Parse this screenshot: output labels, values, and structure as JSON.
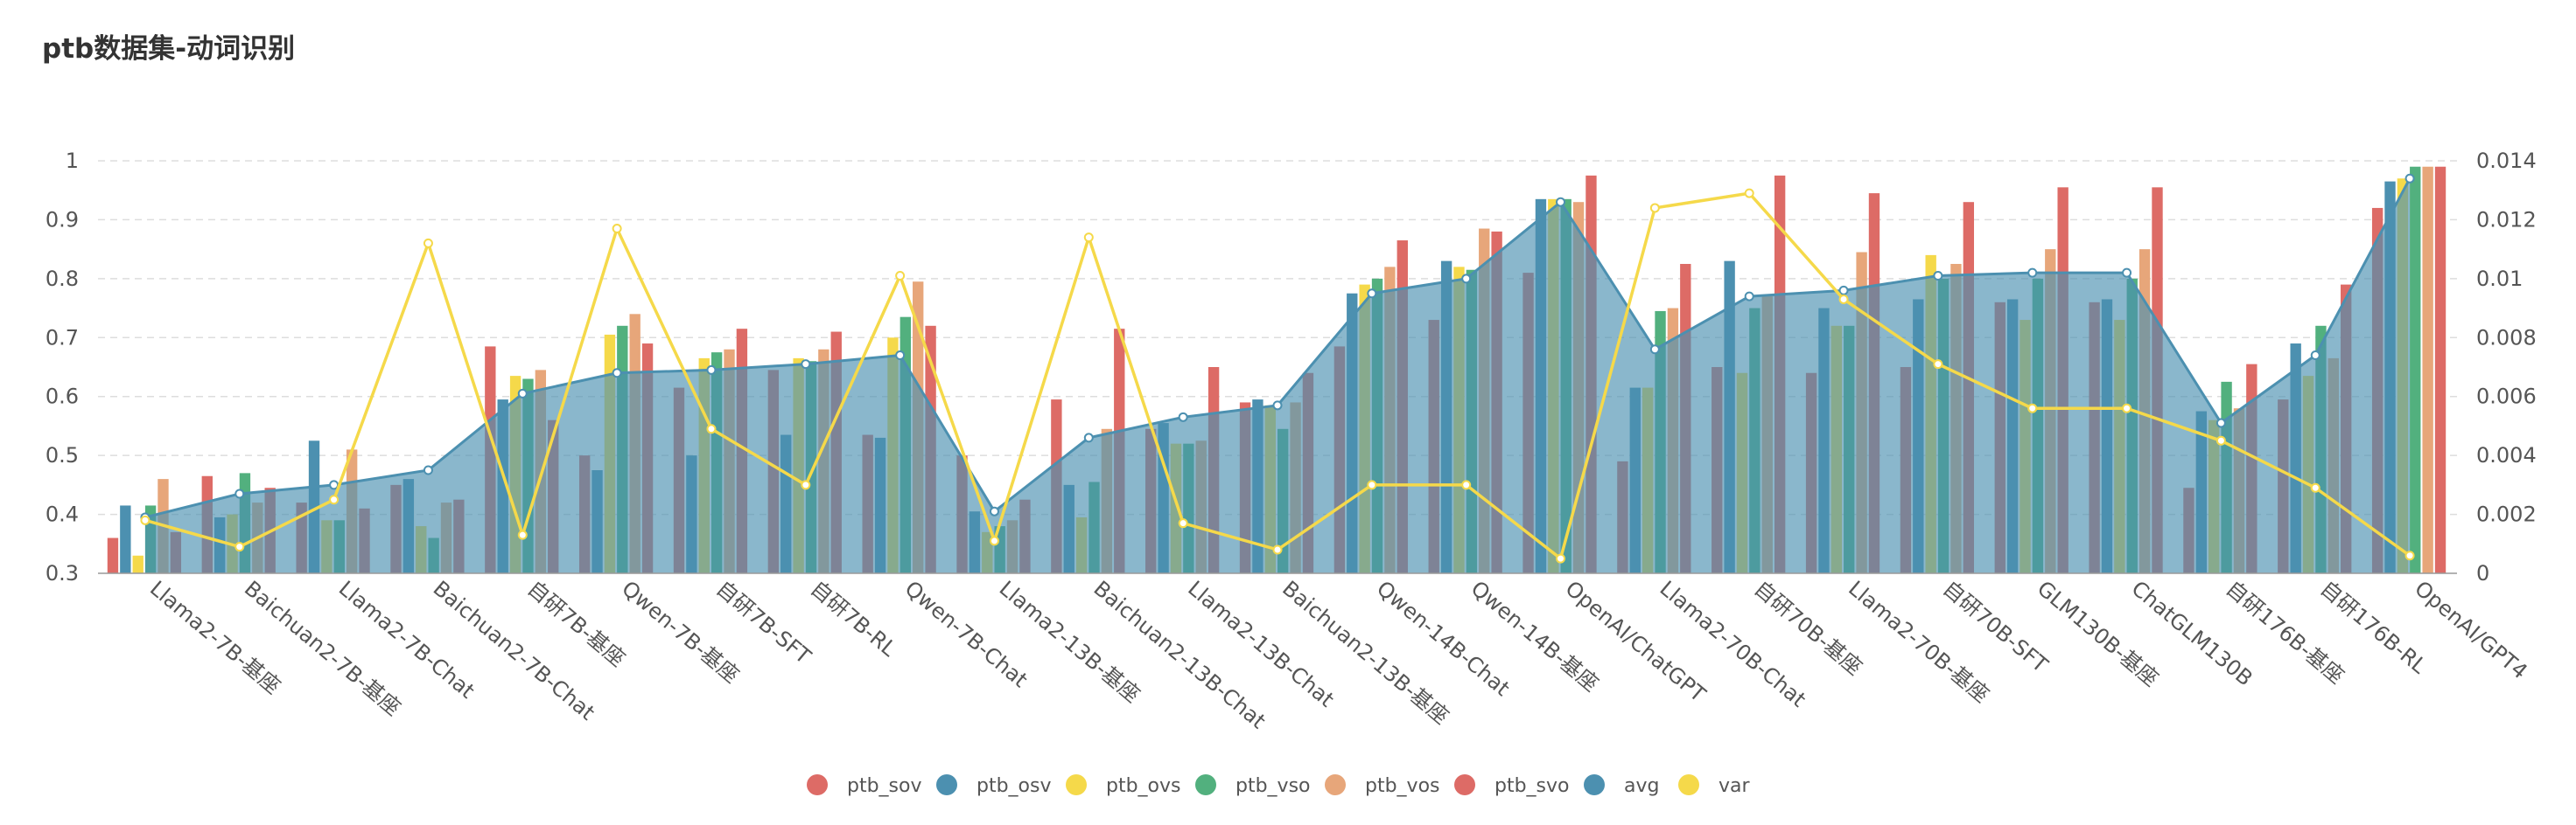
{
  "title": "ptb数据集-动词识别",
  "colors": {
    "ptb_sov": "#dd6b66",
    "ptb_osv": "#4c90b0",
    "ptb_ovs": "#f5d94a",
    "ptb_vso": "#52b07e",
    "ptb_vos": "#e7a67a",
    "ptb_svo": "#dd6b66",
    "avg": "#4c90b0",
    "var": "#f5d94a"
  },
  "chart_data": {
    "type": "bar",
    "categories": [
      "Llama2-7B-基座",
      "Baichuan2-7B-基座",
      "Llama2-7B-Chat",
      "Baichuan2-7B-Chat",
      "自研7B-基座",
      "Qwen-7B-基座",
      "自研7B-SFT",
      "自研7B-RL",
      "Qwen-7B-Chat",
      "Llama2-13B-基座",
      "Baichuan2-13B-Chat",
      "Llama2-13B-Chat",
      "Baichuan2-13B-基座",
      "Qwen-14B-Chat",
      "Qwen-14B-基座",
      "OpenAI/ChatGPT",
      "Llama2-70B-Chat",
      "自研70B-基座",
      "Llama2-70B-基座",
      "自研70B-SFT",
      "GLM130B-基座",
      "ChatGLM130B",
      "自研176B-基座",
      "自研176B-RL",
      "OpenAI/GPT4"
    ],
    "series": [
      {
        "name": "ptb_sov",
        "axis": "left",
        "type": "bar",
        "values": [
          0.36,
          0.465,
          0.42,
          0.45,
          0.685,
          0.5,
          0.615,
          0.645,
          0.535,
          0.5,
          0.595,
          0.545,
          0.59,
          0.685,
          0.73,
          0.81,
          0.49,
          0.65,
          0.64,
          0.65,
          0.76,
          0.76,
          0.445,
          0.595,
          0.92
        ]
      },
      {
        "name": "ptb_osv",
        "axis": "left",
        "type": "bar",
        "values": [
          0.415,
          0.395,
          0.525,
          0.46,
          0.595,
          0.475,
          0.5,
          0.535,
          0.53,
          0.405,
          0.45,
          0.555,
          0.595,
          0.775,
          0.83,
          0.935,
          0.615,
          0.83,
          0.75,
          0.765,
          0.765,
          0.765,
          0.575,
          0.69,
          0.965
        ]
      },
      {
        "name": "ptb_ovs",
        "axis": "left",
        "type": "bar",
        "values": [
          0.33,
          0.4,
          0.39,
          0.38,
          0.635,
          0.705,
          0.665,
          0.665,
          0.7,
          0.37,
          0.395,
          0.52,
          0.585,
          0.79,
          0.82,
          0.935,
          0.615,
          0.64,
          0.72,
          0.84,
          0.73,
          0.73,
          0.56,
          0.635,
          0.97
        ]
      },
      {
        "name": "ptb_vso",
        "axis": "left",
        "type": "bar",
        "values": [
          0.415,
          0.47,
          0.39,
          0.36,
          0.63,
          0.72,
          0.675,
          0.66,
          0.735,
          0.38,
          0.455,
          0.52,
          0.545,
          0.8,
          0.815,
          0.935,
          0.745,
          0.75,
          0.72,
          0.8,
          0.8,
          0.8,
          0.625,
          0.72,
          0.99
        ]
      },
      {
        "name": "ptb_vos",
        "axis": "left",
        "type": "bar",
        "values": [
          0.46,
          0.42,
          0.51,
          0.42,
          0.645,
          0.74,
          0.68,
          0.68,
          0.795,
          0.39,
          0.545,
          0.525,
          0.59,
          0.82,
          0.885,
          0.93,
          0.75,
          0.77,
          0.845,
          0.825,
          0.85,
          0.85,
          0.58,
          0.665,
          0.99
        ]
      },
      {
        "name": "ptb_svo",
        "axis": "left",
        "type": "bar",
        "values": [
          0.37,
          0.445,
          0.41,
          0.425,
          0.56,
          0.69,
          0.715,
          0.71,
          0.72,
          0.425,
          0.715,
          0.65,
          0.64,
          0.865,
          0.88,
          0.975,
          0.825,
          0.975,
          0.945,
          0.93,
          0.955,
          0.955,
          0.655,
          0.79,
          0.99
        ]
      },
      {
        "name": "avg",
        "axis": "left",
        "type": "area",
        "values": [
          0.395,
          0.435,
          0.45,
          0.475,
          0.605,
          0.64,
          0.645,
          0.655,
          0.67,
          0.405,
          0.53,
          0.565,
          0.585,
          0.775,
          0.8,
          0.93,
          0.68,
          0.77,
          0.78,
          0.805,
          0.81,
          0.81,
          0.555,
          0.67,
          0.97
        ]
      },
      {
        "name": "var",
        "axis": "right",
        "type": "line",
        "values": [
          0.0018,
          0.0009,
          0.0025,
          0.0112,
          0.0013,
          0.0117,
          0.0049,
          0.003,
          0.0101,
          0.0011,
          0.0114,
          0.0017,
          0.0008,
          0.003,
          0.003,
          0.0005,
          0.0124,
          0.0129,
          0.0093,
          0.0071,
          0.0056,
          0.0056,
          0.0045,
          0.0029,
          0.0006
        ]
      }
    ],
    "y_left": {
      "min": 0.3,
      "max": 1.0,
      "ticks": [
        "0.3",
        "0.4",
        "0.5",
        "0.6",
        "0.7",
        "0.8",
        "0.9",
        "1"
      ]
    },
    "y_right": {
      "min": 0,
      "max": 0.014,
      "ticks": [
        "0",
        "0.002",
        "0.004",
        "0.006",
        "0.008",
        "0.01",
        "0.012",
        "0.014"
      ]
    },
    "grid": true,
    "legend_position": "bottom-center"
  }
}
